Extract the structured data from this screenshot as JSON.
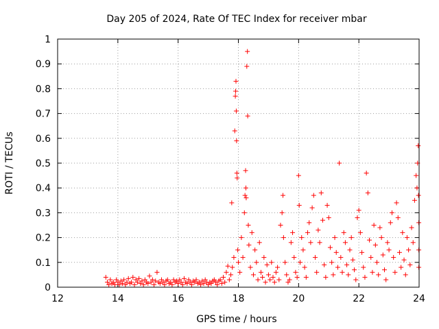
{
  "chart_data": {
    "type": "scatter",
    "title": "Day 205 of 2024, Rate Of TEC Index for receiver mbar",
    "xlabel": "GPS time / hours",
    "ylabel": "ROTI / TECUs",
    "xlim": [
      12,
      24
    ],
    "ylim": [
      0,
      1
    ],
    "xticks": [
      "12",
      "14",
      "16",
      "18",
      "20",
      "22",
      "24"
    ],
    "yticks": [
      "0",
      "0.1",
      "0.2",
      "0.3",
      "0.4",
      "0.5",
      "0.6",
      "0.7",
      "0.8",
      "0.9",
      "1"
    ],
    "grid": true,
    "marker": "+",
    "color": "#ff0000",
    "series": [
      {
        "name": "ROTI",
        "points": [
          [
            13.6,
            0.04
          ],
          [
            13.65,
            0.02
          ],
          [
            13.7,
            0.01
          ],
          [
            13.75,
            0.03
          ],
          [
            13.8,
            0.015
          ],
          [
            13.85,
            0.02
          ],
          [
            13.9,
            0.01
          ],
          [
            13.95,
            0.03
          ],
          [
            14.0,
            0.02
          ],
          [
            14.05,
            0.01
          ],
          [
            14.1,
            0.025
          ],
          [
            14.15,
            0.015
          ],
          [
            14.2,
            0.03
          ],
          [
            14.25,
            0.01
          ],
          [
            14.3,
            0.02
          ],
          [
            14.35,
            0.035
          ],
          [
            14.4,
            0.015
          ],
          [
            14.45,
            0.02
          ],
          [
            14.5,
            0.04
          ],
          [
            14.55,
            0.01
          ],
          [
            14.6,
            0.03
          ],
          [
            14.65,
            0.02
          ],
          [
            14.7,
            0.035
          ],
          [
            14.75,
            0.015
          ],
          [
            14.8,
            0.025
          ],
          [
            14.85,
            0.01
          ],
          [
            14.9,
            0.03
          ],
          [
            14.95,
            0.02
          ],
          [
            15.0,
            0.015
          ],
          [
            15.05,
            0.045
          ],
          [
            15.1,
            0.02
          ],
          [
            15.15,
            0.03
          ],
          [
            15.2,
            0.01
          ],
          [
            15.25,
            0.025
          ],
          [
            15.3,
            0.06
          ],
          [
            15.35,
            0.02
          ],
          [
            15.4,
            0.015
          ],
          [
            15.45,
            0.03
          ],
          [
            15.5,
            0.02
          ],
          [
            15.55,
            0.01
          ],
          [
            15.6,
            0.025
          ],
          [
            15.65,
            0.03
          ],
          [
            15.7,
            0.015
          ],
          [
            15.75,
            0.02
          ],
          [
            15.8,
            0.01
          ],
          [
            15.85,
            0.03
          ],
          [
            15.9,
            0.02
          ],
          [
            15.95,
            0.025
          ],
          [
            16.0,
            0.015
          ],
          [
            16.05,
            0.03
          ],
          [
            16.1,
            0.02
          ],
          [
            16.15,
            0.01
          ],
          [
            16.2,
            0.035
          ],
          [
            16.25,
            0.02
          ],
          [
            16.3,
            0.015
          ],
          [
            16.35,
            0.03
          ],
          [
            16.4,
            0.02
          ],
          [
            16.45,
            0.01
          ],
          [
            16.5,
            0.025
          ],
          [
            16.55,
            0.02
          ],
          [
            16.6,
            0.03
          ],
          [
            16.65,
            0.015
          ],
          [
            16.7,
            0.02
          ],
          [
            16.75,
            0.01
          ],
          [
            16.8,
            0.025
          ],
          [
            16.85,
            0.015
          ],
          [
            16.9,
            0.03
          ],
          [
            16.95,
            0.02
          ],
          [
            17.0,
            0.01
          ],
          [
            17.05,
            0.02
          ],
          [
            17.1,
            0.015
          ],
          [
            17.15,
            0.025
          ],
          [
            17.2,
            0.03
          ],
          [
            17.25,
            0.02
          ],
          [
            17.3,
            0.01
          ],
          [
            17.35,
            0.025
          ],
          [
            17.4,
            0.03
          ],
          [
            17.45,
            0.015
          ],
          [
            17.5,
            0.04
          ],
          [
            17.55,
            0.02
          ],
          [
            17.6,
            0.06
          ],
          [
            17.65,
            0.085
          ],
          [
            17.7,
            0.03
          ],
          [
            17.75,
            0.05
          ],
          [
            17.78,
            0.34
          ],
          [
            17.8,
            0.08
          ],
          [
            17.85,
            0.12
          ],
          [
            17.88,
            0.63
          ],
          [
            17.9,
            0.77
          ],
          [
            17.91,
            0.79
          ],
          [
            17.92,
            0.83
          ],
          [
            17.93,
            0.71
          ],
          [
            17.94,
            0.59
          ],
          [
            17.95,
            0.46
          ],
          [
            17.96,
            0.44
          ],
          [
            17.98,
            0.15
          ],
          [
            18.0,
            0.1
          ],
          [
            18.05,
            0.06
          ],
          [
            18.1,
            0.2
          ],
          [
            18.15,
            0.12
          ],
          [
            18.2,
            0.3
          ],
          [
            18.22,
            0.37
          ],
          [
            18.24,
            0.47
          ],
          [
            18.25,
            0.4
          ],
          [
            18.26,
            0.36
          ],
          [
            18.28,
            0.89
          ],
          [
            18.3,
            0.95
          ],
          [
            18.31,
            0.69
          ],
          [
            18.33,
            0.25
          ],
          [
            18.35,
            0.17
          ],
          [
            18.4,
            0.08
          ],
          [
            18.45,
            0.22
          ],
          [
            18.5,
            0.05
          ],
          [
            18.55,
            0.15
          ],
          [
            18.6,
            0.1
          ],
          [
            18.65,
            0.03
          ],
          [
            18.7,
            0.18
          ],
          [
            18.75,
            0.06
          ],
          [
            18.8,
            0.04
          ],
          [
            18.85,
            0.12
          ],
          [
            18.9,
            0.02
          ],
          [
            18.95,
            0.09
          ],
          [
            19.0,
            0.05
          ],
          [
            19.05,
            0.03
          ],
          [
            19.1,
            0.1
          ],
          [
            19.15,
            0.04
          ],
          [
            19.2,
            0.02
          ],
          [
            19.25,
            0.06
          ],
          [
            19.3,
            0.08
          ],
          [
            19.35,
            0.03
          ],
          [
            19.4,
            0.25
          ],
          [
            19.45,
            0.3
          ],
          [
            19.48,
            0.37
          ],
          [
            19.5,
            0.2
          ],
          [
            19.55,
            0.1
          ],
          [
            19.6,
            0.05
          ],
          [
            19.65,
            0.02
          ],
          [
            19.7,
            0.03
          ],
          [
            19.75,
            0.18
          ],
          [
            19.8,
            0.22
          ],
          [
            19.85,
            0.12
          ],
          [
            19.9,
            0.06
          ],
          [
            19.95,
            0.04
          ],
          [
            20.0,
            0.45
          ],
          [
            20.02,
            0.33
          ],
          [
            20.05,
            0.1
          ],
          [
            20.1,
            0.2
          ],
          [
            20.15,
            0.15
          ],
          [
            20.2,
            0.08
          ],
          [
            20.25,
            0.04
          ],
          [
            20.3,
            0.22
          ],
          [
            20.35,
            0.26
          ],
          [
            20.4,
            0.18
          ],
          [
            20.45,
            0.32
          ],
          [
            20.5,
            0.37
          ],
          [
            20.55,
            0.12
          ],
          [
            20.6,
            0.06
          ],
          [
            20.65,
            0.23
          ],
          [
            20.7,
            0.18
          ],
          [
            20.75,
            0.38
          ],
          [
            20.8,
            0.27
          ],
          [
            20.85,
            0.09
          ],
          [
            20.9,
            0.04
          ],
          [
            20.95,
            0.33
          ],
          [
            21.0,
            0.28
          ],
          [
            21.05,
            0.16
          ],
          [
            21.1,
            0.1
          ],
          [
            21.15,
            0.05
          ],
          [
            21.2,
            0.2
          ],
          [
            21.25,
            0.14
          ],
          [
            21.3,
            0.08
          ],
          [
            21.35,
            0.5
          ],
          [
            21.4,
            0.12
          ],
          [
            21.45,
            0.06
          ],
          [
            21.5,
            0.22
          ],
          [
            21.55,
            0.18
          ],
          [
            21.6,
            0.09
          ],
          [
            21.65,
            0.05
          ],
          [
            21.7,
            0.15
          ],
          [
            21.75,
            0.2
          ],
          [
            21.8,
            0.11
          ],
          [
            21.85,
            0.07
          ],
          [
            21.9,
            0.03
          ],
          [
            21.95,
            0.28
          ],
          [
            22.0,
            0.31
          ],
          [
            22.05,
            0.22
          ],
          [
            22.1,
            0.14
          ],
          [
            22.15,
            0.08
          ],
          [
            22.2,
            0.04
          ],
          [
            22.25,
            0.46
          ],
          [
            22.3,
            0.38
          ],
          [
            22.35,
            0.19
          ],
          [
            22.4,
            0.12
          ],
          [
            22.45,
            0.06
          ],
          [
            22.5,
            0.25
          ],
          [
            22.55,
            0.17
          ],
          [
            22.6,
            0.1
          ],
          [
            22.65,
            0.05
          ],
          [
            22.7,
            0.24
          ],
          [
            22.75,
            0.2
          ],
          [
            22.8,
            0.13
          ],
          [
            22.85,
            0.07
          ],
          [
            22.9,
            0.03
          ],
          [
            22.95,
            0.18
          ],
          [
            23.0,
            0.15
          ],
          [
            23.05,
            0.26
          ],
          [
            23.1,
            0.3
          ],
          [
            23.15,
            0.12
          ],
          [
            23.2,
            0.06
          ],
          [
            23.25,
            0.34
          ],
          [
            23.3,
            0.28
          ],
          [
            23.35,
            0.14
          ],
          [
            23.4,
            0.08
          ],
          [
            23.45,
            0.22
          ],
          [
            23.5,
            0.11
          ],
          [
            23.55,
            0.05
          ],
          [
            23.6,
            0.2
          ],
          [
            23.65,
            0.15
          ],
          [
            23.7,
            0.09
          ],
          [
            23.75,
            0.24
          ],
          [
            23.8,
            0.18
          ],
          [
            23.85,
            0.35
          ],
          [
            23.9,
            0.45
          ],
          [
            23.93,
            0.4
          ],
          [
            23.95,
            0.5
          ],
          [
            23.97,
            0.57
          ],
          [
            23.98,
            0.37
          ],
          [
            23.99,
            0.26
          ],
          [
            23.99,
            0.15
          ],
          [
            23.99,
            0.08
          ]
        ]
      }
    ]
  }
}
